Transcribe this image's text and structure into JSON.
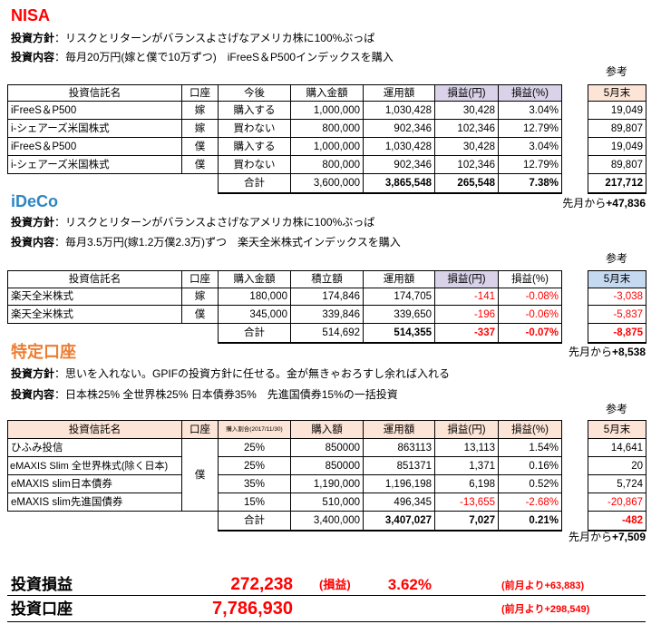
{
  "colors": {
    "nisa-title": "#ff0000",
    "ideco-title": "#2e86c1",
    "tokutei-title": "#ed7d31",
    "loss-header": "#d9d2e9",
    "header-peach": "#fce4d6",
    "header-blue": "#c5d9f1",
    "negative": "#ff0000",
    "summary-red": "#ff0000"
  },
  "nisa": {
    "title": "NISA",
    "policy": {
      "label": "投資方針",
      "text": "：リスクとリターンがバランスよさげなアメリカ株に100%ぶっぱ"
    },
    "content": {
      "label": "投資内容",
      "text": "：毎月20万円(嫁と僕で10万ずつ)　iFreeS＆P500インデックスを購入"
    },
    "reference_label": "参考",
    "headers": {
      "name": "投資信託名",
      "account": "口座",
      "plan": "今後",
      "purchase": "購入金額",
      "value": "運用額",
      "pl_yen": "損益(円)",
      "pl_pct": "損益(%)",
      "month_end": "5月末"
    },
    "rows": [
      {
        "name": "iFreeS＆P500",
        "account": "嫁",
        "plan": "購入する",
        "purchase": "1,000,000",
        "value": "1,030,428",
        "pl_yen": "30,428",
        "pl_pct": "3.04%",
        "month_end": "19,049"
      },
      {
        "name": "i-シェアーズ米国株式",
        "account": "嫁",
        "plan": "買わない",
        "purchase": "800,000",
        "value": "902,346",
        "pl_yen": "102,346",
        "pl_pct": "12.79%",
        "month_end": "89,807"
      },
      {
        "name": "iFreeS＆P500",
        "account": "僕",
        "plan": "購入する",
        "purchase": "1,000,000",
        "value": "1,030,428",
        "pl_yen": "30,428",
        "pl_pct": "3.04%",
        "month_end": "19,049"
      },
      {
        "name": "i-シェアーズ米国株式",
        "account": "僕",
        "plan": "買わない",
        "purchase": "800,000",
        "value": "902,346",
        "pl_yen": "102,346",
        "pl_pct": "12.79%",
        "month_end": "89,807"
      }
    ],
    "total": {
      "label": "合計",
      "purchase": "3,600,000",
      "value": "3,865,548",
      "pl_yen": "265,548",
      "pl_pct": "7.38%",
      "month_end": "217,712"
    },
    "change": {
      "label": "先月から",
      "value": "+47,836"
    }
  },
  "ideco": {
    "title": "iDeCo",
    "policy": {
      "label": "投資方針",
      "text": "：リスクとリターンがバランスよさげなアメリカ株に100%ぶっぱ"
    },
    "content": {
      "label": "投資内容",
      "text": "：毎月3.5万円(嫁1.2万僕2.3万)ずつ　楽天全米株式インデックスを購入"
    },
    "reference_label": "参考",
    "headers": {
      "name": "投資信託名",
      "account": "口座",
      "purchase": "購入金額",
      "accumulated": "積立額",
      "value": "運用額",
      "pl_yen": "損益(円)",
      "pl_pct": "損益(%)",
      "month_end": "5月末"
    },
    "rows": [
      {
        "name": "楽天全米株式",
        "account": "嫁",
        "purchase": "180,000",
        "accumulated": "174,846",
        "value": "174,705",
        "pl_yen": "-141",
        "pl_pct": "-0.08%",
        "month_end": "-3,038"
      },
      {
        "name": "楽天全米株式",
        "account": "僕",
        "purchase": "345,000",
        "accumulated": "339,846",
        "value": "339,650",
        "pl_yen": "-196",
        "pl_pct": "-0.06%",
        "month_end": "-5,837"
      }
    ],
    "total": {
      "label": "合計",
      "accumulated": "514,692",
      "value": "514,355",
      "pl_yen": "-337",
      "pl_pct": "-0.07%",
      "month_end": "-8,875"
    },
    "change": {
      "label": "先月から",
      "value": "+8,538"
    }
  },
  "tokutei": {
    "title": "特定口座",
    "policy": {
      "label": "投資方針",
      "text": "：思いを入れない。GPIFの投資方針に任せる。金が無きゃおろすし余れば入れる"
    },
    "content": {
      "label": "投資内容",
      "text": "：日本株25% 全世界株25% 日本債券35%　先進国債券15%の一括投資"
    },
    "reference_label": "参考",
    "headers": {
      "name": "投資信託名",
      "account": "口座",
      "ratio": "購入割合(2017/11/30)",
      "purchase": "購入額",
      "value": "運用額",
      "pl_yen": "損益(円)",
      "pl_pct": "損益(%)",
      "month_end": "5月末"
    },
    "account": "僕",
    "rows": [
      {
        "name": "ひふみ投信",
        "ratio": "25%",
        "purchase": "850000",
        "value": "863113",
        "pl_yen": "13,113",
        "pl_pct": "1.54%",
        "month_end": "14,641"
      },
      {
        "name": "eMAXIS Slim 全世界株式(除く日本)",
        "ratio": "25%",
        "purchase": "850000",
        "value": "851371",
        "pl_yen": "1,371",
        "pl_pct": "0.16%",
        "month_end": "20"
      },
      {
        "name": "eMAXIS slim日本債券",
        "ratio": "35%",
        "purchase": "1,190,000",
        "value": "1,196,198",
        "pl_yen": "6,198",
        "pl_pct": "0.52%",
        "month_end": "5,724"
      },
      {
        "name": "eMAXIS slim先進国債券",
        "ratio": "15%",
        "purchase": "510,000",
        "value": "496,345",
        "pl_yen": "-13,655",
        "pl_pct": "-2.68%",
        "month_end": "-20,867"
      }
    ],
    "total": {
      "label": "合計",
      "purchase": "3,400,000",
      "value": "3,407,027",
      "pl_yen": "7,027",
      "pl_pct": "0.21%",
      "month_end": "-482"
    },
    "change": {
      "label": "先月から",
      "value": "+7,509"
    }
  },
  "summary": {
    "pl": {
      "label": "投資損益",
      "amount": "272,238",
      "paren_label": "(損益)",
      "pct": "3.62%",
      "change": "(前月より+63,883)"
    },
    "account": {
      "label": "投資口座",
      "amount": "7,786,930",
      "change": "(前月より+298,549)"
    }
  }
}
